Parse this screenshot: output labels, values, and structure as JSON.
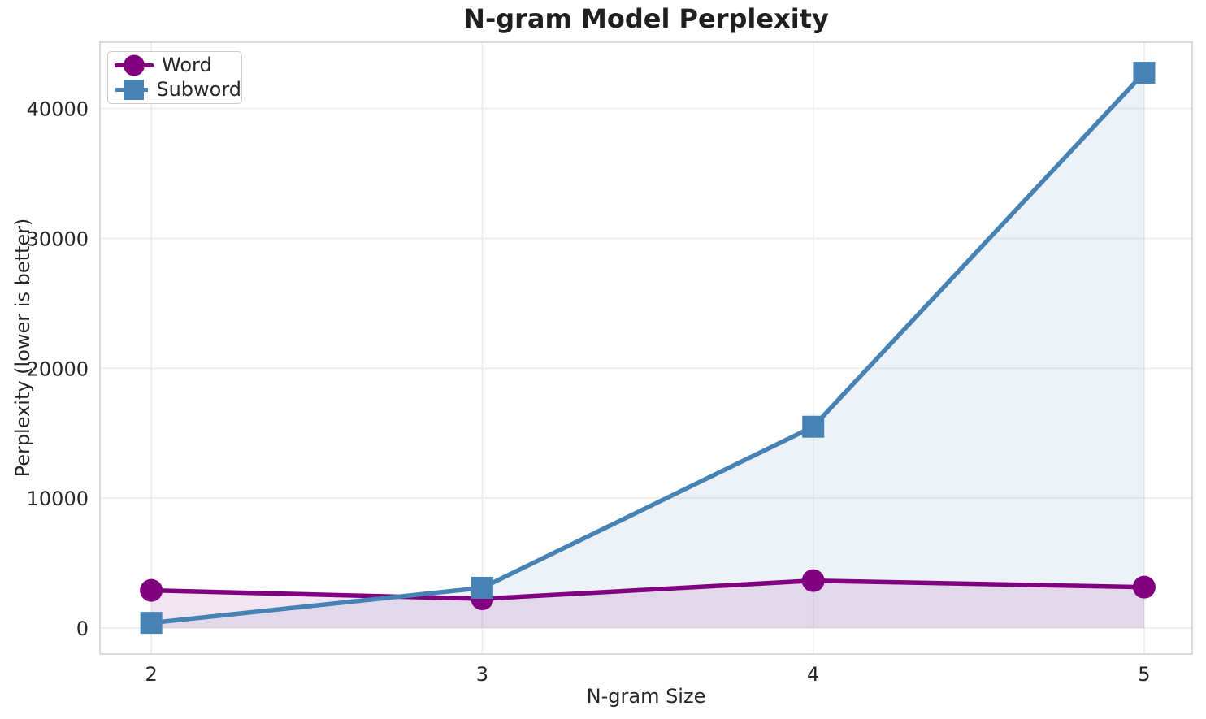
{
  "chart_data": {
    "type": "line",
    "title": "N-gram Model Perplexity",
    "xlabel": "N-gram Size",
    "ylabel": "Perplexity (lower is better)",
    "x": [
      2,
      3,
      4,
      5
    ],
    "x_tick_labels": [
      "2",
      "3",
      "4",
      "5"
    ],
    "y_ticks": [
      0,
      10000,
      20000,
      30000,
      40000
    ],
    "y_tick_labels": [
      "0",
      "10000",
      "20000",
      "30000",
      "40000"
    ],
    "xlim": [
      1.845,
      5.145
    ],
    "ylim": [
      -2000,
      45100
    ],
    "grid": true,
    "legend_position": "upper-left",
    "series": [
      {
        "name": "Word",
        "marker": "circle",
        "color": "#800080",
        "fill_opacity": 0.1,
        "values": [
          2900,
          2250,
          3650,
          3150
        ]
      },
      {
        "name": "Subword",
        "marker": "square",
        "color": "#4682B4",
        "fill_opacity": 0.1,
        "values": [
          400,
          3100,
          15500,
          42750
        ]
      }
    ],
    "colors": {
      "text": "#262626",
      "title": "#1f1f1f",
      "grid": "#ececec",
      "spine": "#d6d6d6",
      "background": "#ffffff"
    }
  }
}
